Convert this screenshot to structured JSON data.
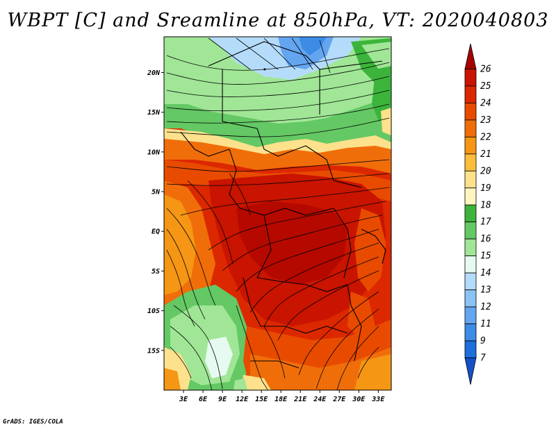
{
  "title": "WBPT [C] and Sreamline at 850hPa, VT: 2020040803",
  "credit": "GrADS: IGES/COLA",
  "map": {
    "lat_ticks": [
      {
        "label": "20N",
        "lat": 20
      },
      {
        "label": "15N",
        "lat": 15
      },
      {
        "label": "10N",
        "lat": 10
      },
      {
        "label": "5N",
        "lat": 5
      },
      {
        "label": "EQ",
        "lat": 0
      },
      {
        "label": "5S",
        "lat": -5
      },
      {
        "label": "10S",
        "lat": -10
      },
      {
        "label": "15S",
        "lat": -15
      }
    ],
    "lon_ticks": [
      {
        "label": "3E",
        "lon": 3
      },
      {
        "label": "6E",
        "lon": 6
      },
      {
        "label": "9E",
        "lon": 9
      },
      {
        "label": "12E",
        "lon": 12
      },
      {
        "label": "15E",
        "lon": 15
      },
      {
        "label": "18E",
        "lon": 18
      },
      {
        "label": "21E",
        "lon": 21
      },
      {
        "label": "24E",
        "lon": 24
      },
      {
        "label": "27E",
        "lon": 27
      },
      {
        "label": "30E",
        "lon": 30
      },
      {
        "label": "33E",
        "lon": 33
      }
    ],
    "lon_range": [
      0,
      35
    ],
    "lat_range": [
      -20,
      24.5
    ]
  },
  "colorbar": {
    "labels": [
      "26",
      "25",
      "24",
      "23",
      "22",
      "21",
      "20",
      "19",
      "18",
      "17",
      "16",
      "15",
      "14",
      "13",
      "12",
      "11",
      "9",
      "7"
    ],
    "colors": [
      "#a50000",
      "#c81400",
      "#dc2800",
      "#e84b00",
      "#f06e0a",
      "#f59614",
      "#fabe3c",
      "#fde18c",
      "#fff5be",
      "#3cb43c",
      "#64c864",
      "#a0e696",
      "#e6faf0",
      "#b4dcfa",
      "#8cc3f5",
      "#64a5f0",
      "#3c8ce6",
      "#1e6edc",
      "#1450c8"
    ]
  }
}
